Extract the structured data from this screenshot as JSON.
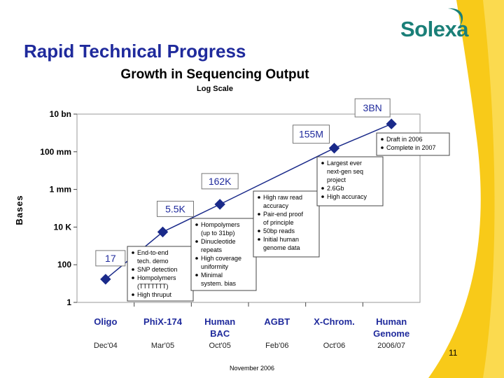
{
  "slide": {
    "title": "Rapid Technical Progress",
    "logo": "Solexa",
    "page_number": "11",
    "footer_date": "November 2006"
  },
  "colors": {
    "title": "#1f2a9c",
    "marker": "#1a2a8a",
    "line": "#1a2a8a",
    "plot_background": "#ffffff",
    "axis_category": "#1f2a9c",
    "logo": "#1a7f78",
    "decor_yellow": "#f7c400"
  },
  "chart_data": {
    "type": "line",
    "title": "Growth in Sequencing Output",
    "subtitle": "Log Scale",
    "ylabel": "Bases",
    "y_scale": "log",
    "ylim": [
      1,
      10000000000
    ],
    "y_ticks": [
      {
        "value": 1,
        "label": "1"
      },
      {
        "value": 100,
        "label": "100"
      },
      {
        "value": 10000,
        "label": "10 K"
      },
      {
        "value": 1000000,
        "label": "1 mm"
      },
      {
        "value": 100000000,
        "label": "100 mm"
      },
      {
        "value": 10000000000,
        "label": "10 bn"
      }
    ],
    "categories": [
      {
        "name": [
          "Oligo"
        ],
        "date": "Dec'04"
      },
      {
        "name": [
          "PhiX-174"
        ],
        "date": "Mar'05"
      },
      {
        "name": [
          "Human",
          "BAC"
        ],
        "date": "Oct'05"
      },
      {
        "name": [
          "AGBT"
        ],
        "date": "Feb'06"
      },
      {
        "name": [
          "X-Chrom."
        ],
        "date": "Oct'06"
      },
      {
        "name": [
          "Human",
          "Genome"
        ],
        "date": "2006/07"
      }
    ],
    "points": [
      {
        "category_index": 0,
        "value": 17
      },
      {
        "category_index": 1,
        "value": 5500
      },
      {
        "category_index": 2,
        "value": 162000
      },
      {
        "category_index": 4,
        "value": 155000000
      },
      {
        "category_index": 5,
        "value": 3000000000
      }
    ],
    "data_labels": [
      {
        "text": "17",
        "at_value": 17,
        "category_index": 0
      },
      {
        "text": "5.5K",
        "at_value": 5500,
        "category_index": 1
      },
      {
        "text": "162K",
        "at_value": 162000,
        "category_index": 2
      },
      {
        "text": "155M",
        "at_value": 155000000,
        "category_index": 4
      },
      {
        "text": "3BN",
        "at_value": 3000000000,
        "category_index": 5
      }
    ],
    "annotations": [
      {
        "id": "phix",
        "bullets": [
          [
            "End-to-end",
            "tech. demo"
          ],
          [
            "SNP detection"
          ],
          [
            "Hompolymers",
            "(TTTTTTT)"
          ],
          [
            "High thruput"
          ]
        ]
      },
      {
        "id": "bac",
        "bullets": [
          [
            "Hompolymers",
            "(up to 31bp)"
          ],
          [
            "Dinucleotide",
            "repeats"
          ],
          [
            "High coverage",
            "uniformity"
          ],
          [
            "Minimal",
            "system. bias"
          ]
        ]
      },
      {
        "id": "agbt",
        "bullets": [
          [
            "High raw read",
            "accuracy"
          ],
          [
            "Pair-end proof",
            "of principle"
          ],
          [
            "50bp reads"
          ],
          [
            "Initial human",
            "genome data"
          ]
        ]
      },
      {
        "id": "xchrom",
        "bullets": [
          [
            "Largest ever",
            "next-gen seq",
            "project"
          ],
          [
            "2.6Gb"
          ],
          [
            "High accuracy"
          ]
        ]
      },
      {
        "id": "genome",
        "bullets": [
          [
            "Draft in 2006"
          ],
          [
            "Complete in 2007"
          ]
        ]
      }
    ],
    "grid": false
  }
}
